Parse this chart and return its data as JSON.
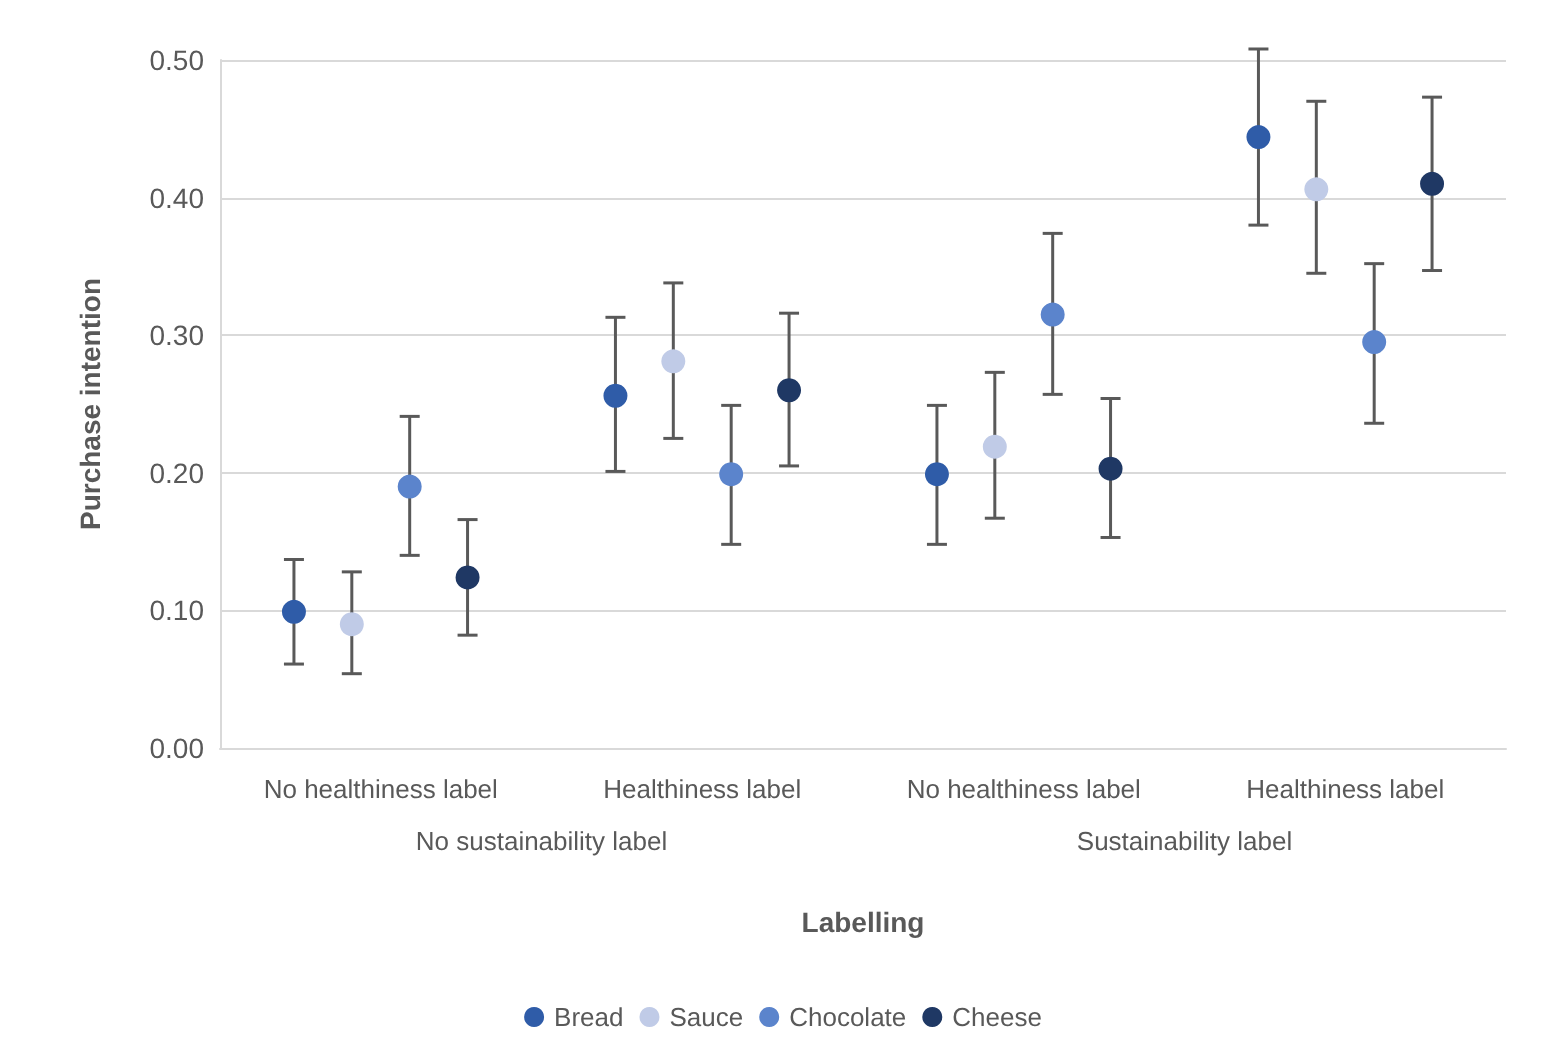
{
  "chart_data": {
    "type": "scatter",
    "xlabel": "Labelling",
    "ylabel": "Purchase intention",
    "categories": [
      "No healthiness label",
      "Healthiness label",
      "No healthiness label",
      "Healthiness label"
    ],
    "annotations": [
      "No sustainability label",
      "Sustainability label"
    ],
    "ylim": [
      0,
      0.5
    ],
    "yticks": [
      {
        "value": 0,
        "label": "0.00"
      },
      {
        "value": 0.1,
        "label": "0.10"
      },
      {
        "value": 0.2,
        "label": "0.20"
      },
      {
        "value": 0.3,
        "label": "0.30"
      },
      {
        "value": 0.4,
        "label": "0.40"
      },
      {
        "value": 0.5,
        "label": "0.50"
      }
    ],
    "grid": "y",
    "legend": "bottom",
    "marker": "circle",
    "series": [
      {
        "name": "Bread",
        "color": "#2f5ca8",
        "values": [
          0.099,
          0.256,
          0.199,
          0.444
        ],
        "errors": [
          [
            0.061,
            0.137
          ],
          [
            0.201,
            0.313
          ],
          [
            0.148,
            0.249
          ],
          [
            0.38,
            0.508
          ]
        ]
      },
      {
        "name": "Sauce",
        "color": "#c0cbe7",
        "values": [
          0.09,
          0.281,
          0.219,
          0.406
        ],
        "errors": [
          [
            0.054,
            0.128
          ],
          [
            0.225,
            0.338
          ],
          [
            0.167,
            0.273
          ],
          [
            0.345,
            0.47
          ]
        ]
      },
      {
        "name": "Chocolate",
        "color": "#5b84cc",
        "values": [
          0.19,
          0.199,
          0.315,
          0.295
        ],
        "errors": [
          [
            0.14,
            0.241
          ],
          [
            0.148,
            0.249
          ],
          [
            0.257,
            0.374
          ],
          [
            0.236,
            0.352
          ]
        ]
      },
      {
        "name": "Cheese",
        "color": "#1f3864",
        "values": [
          0.124,
          0.26,
          0.203,
          0.41
        ],
        "errors": [
          [
            0.082,
            0.166
          ],
          [
            0.205,
            0.316
          ],
          [
            0.153,
            0.254
          ],
          [
            0.347,
            0.473
          ]
        ]
      }
    ]
  }
}
